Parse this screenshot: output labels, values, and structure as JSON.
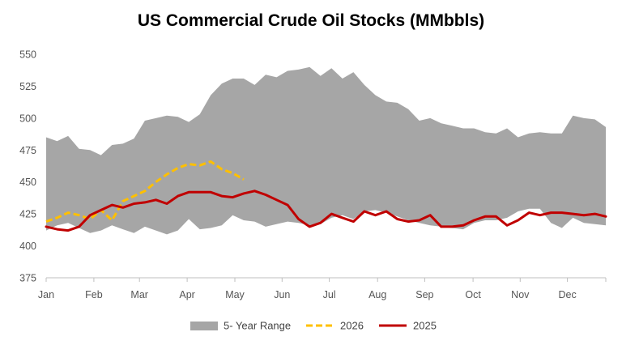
{
  "chart_data": {
    "type": "area",
    "title": "US Commercial Crude Oil Stocks (MMbbls)",
    "xlabel": "",
    "ylabel": "",
    "ylim": [
      375,
      550
    ],
    "yticks": [
      375,
      400,
      425,
      450,
      475,
      500,
      525,
      550
    ],
    "xlim": [
      1,
      52
    ],
    "months": [
      "Jan",
      "Feb",
      "Mar",
      "Apr",
      "May",
      "Jun",
      "Jul",
      "Aug",
      "Sep",
      "Oct",
      "Nov",
      "Dec"
    ],
    "month_weeks": [
      1,
      5.35,
      9.5,
      13.85,
      18.2,
      22.5,
      26.8,
      31.2,
      35.5,
      39.9,
      44.2,
      48.5
    ],
    "grid": false,
    "legend": "bottom",
    "colors": {
      "range": "#a6a6a6",
      "y2026": "#ffc000",
      "y2025": "#c00000"
    },
    "legend_labels": {
      "range": "5- Year Range",
      "y2026": "2026",
      "y2025": "2025"
    },
    "range": {
      "name": "5- Year Range",
      "x": [
        1,
        2,
        3,
        4,
        5,
        6,
        7,
        8,
        9,
        10,
        11,
        12,
        13,
        14,
        15,
        16,
        17,
        18,
        19,
        20,
        21,
        22,
        23,
        24,
        25,
        26,
        27,
        28,
        29,
        30,
        31,
        32,
        33,
        34,
        35,
        36,
        37,
        38,
        39,
        40,
        41,
        42,
        43,
        44,
        45,
        46,
        47,
        48,
        49,
        50,
        51,
        52
      ],
      "upper": [
        485,
        482,
        486,
        476,
        475,
        471,
        479,
        480,
        484,
        498,
        500,
        502,
        501,
        497,
        503,
        518,
        527,
        531,
        531,
        526,
        534,
        532,
        537,
        538,
        540,
        533,
        539,
        531,
        536,
        526,
        518,
        513,
        512,
        507,
        498,
        500,
        496,
        494,
        492,
        492,
        489,
        488,
        492,
        485,
        488,
        489,
        488,
        488,
        502,
        500,
        499,
        493
      ],
      "lower": [
        412,
        416,
        418,
        414,
        410,
        412,
        416,
        413,
        410,
        415,
        412,
        409,
        412,
        421,
        413,
        414,
        416,
        424,
        420,
        419,
        415,
        417,
        419,
        418,
        416,
        417,
        422,
        424,
        421,
        427,
        428,
        426,
        423,
        420,
        418,
        416,
        415,
        414,
        413,
        418,
        420,
        420,
        422,
        427,
        429,
        429,
        418,
        414,
        422,
        418,
        417,
        416
      ]
    },
    "series": [
      {
        "name": "2026",
        "x": [
          1,
          2,
          3,
          4,
          5,
          6,
          7,
          8,
          9,
          10,
          11,
          12,
          13,
          14,
          15,
          16,
          17,
          18,
          19
        ],
        "values": [
          419,
          422,
          426,
          424,
          421,
          428,
          420,
          435,
          439,
          443,
          450,
          456,
          461,
          464,
          463,
          466,
          460,
          457,
          452
        ]
      },
      {
        "name": "2025",
        "x": [
          1,
          2,
          3,
          4,
          5,
          6,
          7,
          8,
          9,
          10,
          11,
          12,
          13,
          14,
          15,
          16,
          17,
          18,
          19,
          20,
          21,
          22,
          23,
          24,
          25,
          26,
          27,
          28,
          29,
          30,
          31,
          32,
          33,
          34,
          35,
          36,
          37,
          38,
          39,
          40,
          41,
          42,
          43,
          44,
          45,
          46,
          47,
          48,
          49,
          50,
          51,
          52
        ],
        "values": [
          415,
          413,
          412,
          415,
          424,
          428,
          432,
          430,
          433,
          434,
          436,
          433,
          439,
          442,
          442,
          442,
          439,
          438,
          441,
          443,
          440,
          436,
          432,
          421,
          415,
          418,
          425,
          422,
          419,
          427,
          424,
          427,
          421,
          419,
          420,
          424,
          415,
          415,
          416,
          420,
          423,
          423,
          416,
          420,
          426,
          424,
          426,
          426,
          425,
          424,
          425,
          423
        ]
      }
    ]
  }
}
